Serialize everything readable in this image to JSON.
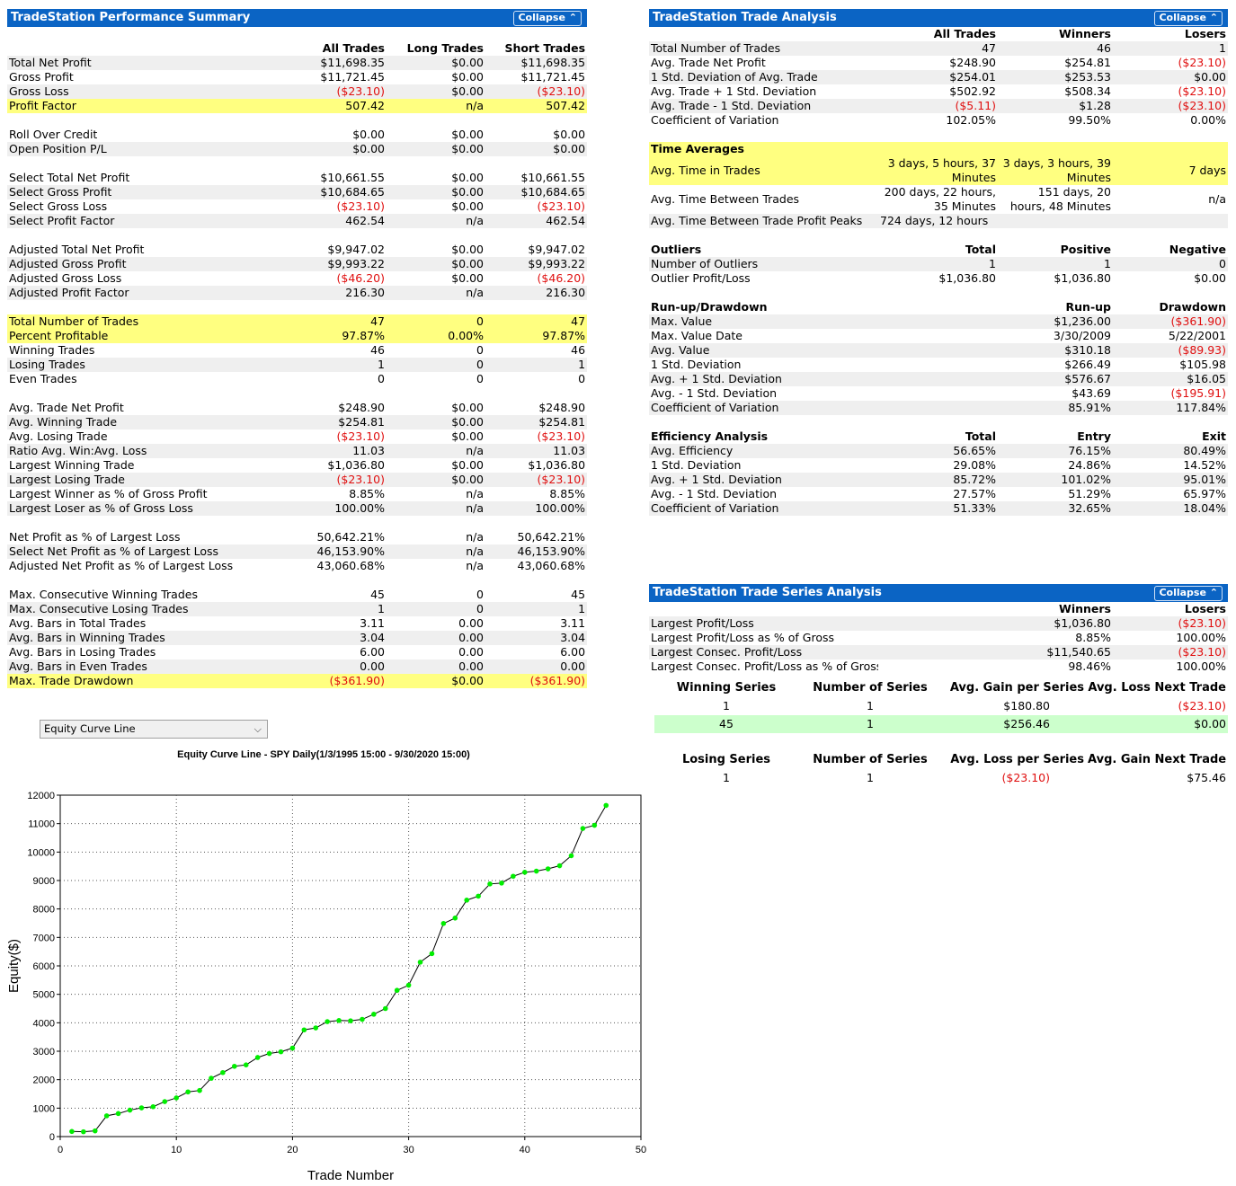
{
  "perf": {
    "title": "TradeStation Performance Summary",
    "collapse": "Collapse",
    "cols": [
      "",
      "All Trades",
      "Long Trades",
      "Short Trades"
    ],
    "rows": [
      {
        "t": "sp"
      },
      {
        "t": "head",
        "c": [
          "",
          "All Trades",
          "Long Trades",
          "Short Trades"
        ]
      },
      {
        "t": "",
        "c": [
          "Total Net Profit",
          "$11,698.35",
          "$0.00",
          "$11,698.35"
        ]
      },
      {
        "t": "",
        "c": [
          "Gross Profit",
          "$11,721.45",
          "$0.00",
          "$11,721.45"
        ]
      },
      {
        "t": "",
        "c": [
          "Gross Loss",
          "($23.10)",
          "$0.00",
          "($23.10)"
        ],
        "neg": [
          1,
          3
        ]
      },
      {
        "t": "hl",
        "c": [
          "Profit Factor",
          "507.42",
          "n/a",
          "507.42"
        ]
      },
      {
        "t": "sp"
      },
      {
        "t": "",
        "c": [
          "Roll Over Credit",
          "$0.00",
          "$0.00",
          "$0.00"
        ]
      },
      {
        "t": "",
        "c": [
          "Open Position P/L",
          "$0.00",
          "$0.00",
          "$0.00"
        ]
      },
      {
        "t": "sp"
      },
      {
        "t": "",
        "c": [
          "Select Total Net Profit",
          "$10,661.55",
          "$0.00",
          "$10,661.55"
        ]
      },
      {
        "t": "",
        "c": [
          "Select Gross Profit",
          "$10,684.65",
          "$0.00",
          "$10,684.65"
        ]
      },
      {
        "t": "",
        "c": [
          "Select Gross Loss",
          "($23.10)",
          "$0.00",
          "($23.10)"
        ],
        "neg": [
          1,
          3
        ]
      },
      {
        "t": "",
        "c": [
          "Select Profit Factor",
          "462.54",
          "n/a",
          "462.54"
        ]
      },
      {
        "t": "sp"
      },
      {
        "t": "",
        "c": [
          "Adjusted Total Net Profit",
          "$9,947.02",
          "$0.00",
          "$9,947.02"
        ]
      },
      {
        "t": "",
        "c": [
          "Adjusted Gross Profit",
          "$9,993.22",
          "$0.00",
          "$9,993.22"
        ]
      },
      {
        "t": "",
        "c": [
          "Adjusted Gross Loss",
          "($46.20)",
          "$0.00",
          "($46.20)"
        ],
        "neg": [
          1,
          3
        ]
      },
      {
        "t": "",
        "c": [
          "Adjusted Profit Factor",
          "216.30",
          "n/a",
          "216.30"
        ]
      },
      {
        "t": "sp"
      },
      {
        "t": "hl",
        "c": [
          "Total Number of Trades",
          "47",
          "0",
          "47"
        ]
      },
      {
        "t": "hl",
        "c": [
          "Percent Profitable",
          "97.87%",
          "0.00%",
          "97.87%"
        ]
      },
      {
        "t": "",
        "c": [
          "Winning Trades",
          "46",
          "0",
          "46"
        ]
      },
      {
        "t": "",
        "c": [
          "Losing Trades",
          "1",
          "0",
          "1"
        ]
      },
      {
        "t": "",
        "c": [
          "Even Trades",
          "0",
          "0",
          "0"
        ]
      },
      {
        "t": "sp"
      },
      {
        "t": "",
        "c": [
          "Avg. Trade Net Profit",
          "$248.90",
          "$0.00",
          "$248.90"
        ]
      },
      {
        "t": "",
        "c": [
          "Avg. Winning Trade",
          "$254.81",
          "$0.00",
          "$254.81"
        ]
      },
      {
        "t": "",
        "c": [
          "Avg. Losing Trade",
          "($23.10)",
          "$0.00",
          "($23.10)"
        ],
        "neg": [
          1,
          3
        ]
      },
      {
        "t": "",
        "c": [
          "Ratio Avg. Win:Avg. Loss",
          "11.03",
          "n/a",
          "11.03"
        ]
      },
      {
        "t": "",
        "c": [
          "Largest Winning Trade",
          "$1,036.80",
          "$0.00",
          "$1,036.80"
        ]
      },
      {
        "t": "",
        "c": [
          "Largest Losing Trade",
          "($23.10)",
          "$0.00",
          "($23.10)"
        ],
        "neg": [
          1,
          3
        ]
      },
      {
        "t": "",
        "c": [
          "Largest Winner as % of Gross Profit",
          "8.85%",
          "n/a",
          "8.85%"
        ]
      },
      {
        "t": "",
        "c": [
          "Largest Loser as % of Gross Loss",
          "100.00%",
          "n/a",
          "100.00%"
        ]
      },
      {
        "t": "sp"
      },
      {
        "t": "",
        "c": [
          "Net Profit as % of Largest Loss",
          "50,642.21%",
          "n/a",
          "50,642.21%"
        ]
      },
      {
        "t": "",
        "c": [
          "Select Net Profit as % of Largest Loss",
          "46,153.90%",
          "n/a",
          "46,153.90%"
        ]
      },
      {
        "t": "",
        "c": [
          "Adjusted Net Profit as % of Largest Loss",
          "43,060.68%",
          "n/a",
          "43,060.68%"
        ]
      },
      {
        "t": "sp"
      },
      {
        "t": "",
        "c": [
          "Max. Consecutive Winning Trades",
          "45",
          "0",
          "45"
        ]
      },
      {
        "t": "",
        "c": [
          "Max. Consecutive Losing Trades",
          "1",
          "0",
          "1"
        ]
      },
      {
        "t": "",
        "c": [
          "Avg. Bars in Total Trades",
          "3.11",
          "0.00",
          "3.11"
        ]
      },
      {
        "t": "",
        "c": [
          "Avg. Bars in Winning Trades",
          "3.04",
          "0.00",
          "3.04"
        ]
      },
      {
        "t": "",
        "c": [
          "Avg. Bars in Losing Trades",
          "6.00",
          "0.00",
          "6.00"
        ]
      },
      {
        "t": "",
        "c": [
          "Avg. Bars in Even Trades",
          "0.00",
          "0.00",
          "0.00"
        ]
      },
      {
        "t": "hl",
        "c": [
          "Max. Trade Drawdown",
          "($361.90)",
          "$0.00",
          "($361.90)"
        ],
        "neg": [
          1,
          3
        ]
      }
    ]
  },
  "analysis": {
    "title": "TradeStation Trade Analysis",
    "collapse": "Collapse",
    "rows": [
      {
        "t": "head",
        "c": [
          "",
          "All Trades",
          "Winners",
          "Losers"
        ]
      },
      {
        "t": "",
        "c": [
          "Total Number of Trades",
          "47",
          "46",
          "1"
        ]
      },
      {
        "t": "",
        "c": [
          "Avg. Trade Net Profit",
          "$248.90",
          "$254.81",
          "($23.10)"
        ],
        "neg": [
          3
        ]
      },
      {
        "t": "",
        "c": [
          "1 Std. Deviation of Avg. Trade",
          "$254.01",
          "$253.53",
          "$0.00"
        ]
      },
      {
        "t": "",
        "c": [
          "Avg. Trade + 1 Std. Deviation",
          "$502.92",
          "$508.34",
          "($23.10)"
        ],
        "neg": [
          3
        ]
      },
      {
        "t": "",
        "c": [
          "Avg. Trade - 1 Std. Deviation",
          "($5.11)",
          "$1.28",
          "($23.10)"
        ],
        "neg": [
          1,
          3
        ]
      },
      {
        "t": "",
        "c": [
          "Coefficient of Variation",
          "102.05%",
          "99.50%",
          "0.00%"
        ]
      },
      {
        "t": "sp"
      },
      {
        "t": "hl bold",
        "c": [
          "Time Averages",
          "",
          "",
          ""
        ]
      },
      {
        "t": "hl tall",
        "c": [
          "Avg. Time in Trades",
          "3 days, 5 hours, 37 Minutes",
          "3 days, 3 hours, 39 Minutes",
          "7 days"
        ],
        "wrap": [
          1,
          2
        ]
      },
      {
        "t": "tall",
        "c": [
          "Avg. Time Between Trades",
          "200 days, 22 hours, 35 Minutes",
          "151 days, 20 hours, 48 Minutes",
          "n/a"
        ],
        "wrap": [
          1,
          2
        ]
      },
      {
        "t": "",
        "c": [
          "Avg. Time Between Trade Profit Peaks",
          "724 days, 12 hours",
          "",
          ""
        ],
        "left": [
          1
        ]
      },
      {
        "t": "sp"
      },
      {
        "t": "head",
        "c": [
          "Outliers",
          "Total",
          "Positive",
          "Negative"
        ]
      },
      {
        "t": "",
        "c": [
          "Number of Outliers",
          "1",
          "1",
          "0"
        ]
      },
      {
        "t": "",
        "c": [
          "Outlier Profit/Loss",
          "$1,036.80",
          "$1,036.80",
          "$0.00"
        ]
      },
      {
        "t": "sp"
      },
      {
        "t": "head",
        "c": [
          "Run-up/Drawdown",
          "",
          "Run-up",
          "Drawdown"
        ]
      },
      {
        "t": "",
        "c": [
          "Max. Value",
          "",
          "$1,236.00",
          "($361.90)"
        ],
        "neg": [
          3
        ]
      },
      {
        "t": "",
        "c": [
          "Max. Value Date",
          "",
          "3/30/2009",
          "5/22/2001"
        ]
      },
      {
        "t": "",
        "c": [
          "Avg. Value",
          "",
          "$310.18",
          "($89.93)"
        ],
        "neg": [
          3
        ]
      },
      {
        "t": "",
        "c": [
          "1 Std. Deviation",
          "",
          "$266.49",
          "$105.98"
        ]
      },
      {
        "t": "",
        "c": [
          "Avg. + 1 Std. Deviation",
          "",
          "$576.67",
          "$16.05"
        ]
      },
      {
        "t": "",
        "c": [
          "Avg. - 1 Std. Deviation",
          "",
          "$43.69",
          "($195.91)"
        ],
        "neg": [
          3
        ]
      },
      {
        "t": "",
        "c": [
          "Coefficient of Variation",
          "",
          "85.91%",
          "117.84%"
        ]
      },
      {
        "t": "sp"
      },
      {
        "t": "head",
        "c": [
          "Efficiency Analysis",
          "Total",
          "Entry",
          "Exit"
        ]
      },
      {
        "t": "",
        "c": [
          "Avg. Efficiency",
          "56.65%",
          "76.15%",
          "80.49%"
        ]
      },
      {
        "t": "",
        "c": [
          "1 Std. Deviation",
          "29.08%",
          "24.86%",
          "14.52%"
        ]
      },
      {
        "t": "",
        "c": [
          "Avg. + 1 Std. Deviation",
          "85.72%",
          "101.02%",
          "95.01%"
        ]
      },
      {
        "t": "",
        "c": [
          "Avg. - 1 Std. Deviation",
          "27.57%",
          "51.29%",
          "65.97%"
        ]
      },
      {
        "t": "",
        "c": [
          "Coefficient of Variation",
          "51.33%",
          "32.65%",
          "18.04%"
        ]
      }
    ]
  },
  "series": {
    "title": "TradeStation Trade Series Analysis",
    "collapse": "Collapse",
    "rows": [
      {
        "t": "head",
        "c": [
          "",
          "",
          "Winners",
          "Losers"
        ]
      },
      {
        "t": "",
        "c": [
          "Largest Profit/Loss",
          "",
          "$1,036.80",
          "($23.10)"
        ],
        "neg": [
          3
        ]
      },
      {
        "t": "",
        "c": [
          "Largest Profit/Loss as % of Gross",
          "",
          "8.85%",
          "100.00%"
        ]
      },
      {
        "t": "",
        "c": [
          "Largest Consec. Profit/Loss",
          "",
          "$11,540.65",
          "($23.10)"
        ],
        "neg": [
          3
        ]
      },
      {
        "t": "",
        "c": [
          "Largest Consec. Profit/Loss as % of Gross",
          "",
          "98.46%",
          "100.00%"
        ]
      }
    ],
    "win_head": [
      "Winning Series",
      "Number of Series",
      "Avg. Gain per Series",
      "Avg. Loss Next Trade"
    ],
    "win_rows": [
      {
        "c": [
          "1",
          "1",
          "$180.80",
          "($23.10)"
        ],
        "neg": [
          3
        ]
      },
      {
        "c": [
          "45",
          "1",
          "$256.46",
          "$0.00"
        ],
        "green": true
      }
    ],
    "lose_head": [
      "Losing Series",
      "Number of Series",
      "Avg. Loss per Series",
      "Avg. Gain Next Trade"
    ],
    "lose_rows": [
      {
        "c": [
          "1",
          "1",
          "($23.10)",
          "$75.46"
        ],
        "neg": [
          2
        ]
      }
    ]
  },
  "dropdown": {
    "value": "Equity Curve Line",
    "icon": "chevron-down-icon"
  },
  "chart_data": {
    "type": "line",
    "title": "Equity Curve Line - SPY Daily(1/3/1995 15:00 - 9/30/2020 15:00)",
    "xlabel": "Trade Number",
    "ylabel": "Equity($)",
    "xlim": [
      0,
      50
    ],
    "ylim": [
      0,
      12000
    ],
    "xticks": [
      0,
      10,
      20,
      30,
      40,
      50
    ],
    "yticks": [
      0,
      1000,
      2000,
      3000,
      4000,
      5000,
      6000,
      7000,
      8000,
      9000,
      10000,
      11000,
      12000
    ],
    "grid": true,
    "line_color": "#000000",
    "marker_color": "#00ee00",
    "x": [
      1,
      2,
      3,
      4,
      5,
      6,
      7,
      8,
      9,
      10,
      11,
      12,
      13,
      14,
      15,
      16,
      17,
      18,
      19,
      20,
      21,
      22,
      23,
      24,
      25,
      26,
      27,
      28,
      29,
      30,
      31,
      32,
      33,
      34,
      35,
      36,
      37,
      38,
      39,
      40,
      41,
      42,
      43,
      44,
      45,
      46,
      47
    ],
    "y": [
      180,
      170,
      200,
      730,
      810,
      930,
      1010,
      1050,
      1230,
      1360,
      1570,
      1620,
      2050,
      2250,
      2470,
      2520,
      2780,
      2920,
      2980,
      3110,
      3750,
      3820,
      4040,
      4080,
      4070,
      4120,
      4300,
      4500,
      5140,
      5320,
      6130,
      6430,
      7490,
      7680,
      8310,
      8450,
      8880,
      8910,
      9150,
      9290,
      9330,
      9410,
      9520,
      9870,
      10830,
      10940,
      11640
    ]
  }
}
